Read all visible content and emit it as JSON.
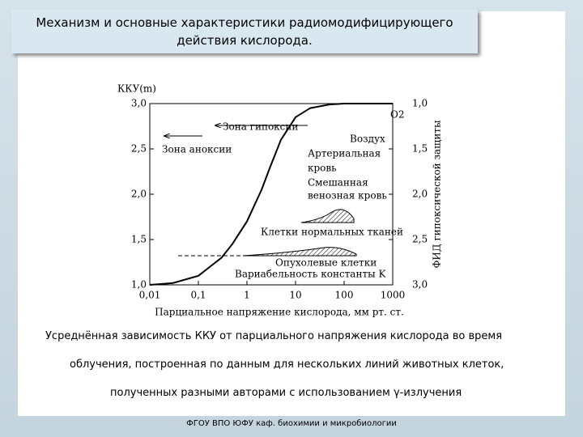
{
  "slide": {
    "title": "Механизм и основные характеристики радиомодифицирующего действия кислорода.",
    "caption": [
      "Усреднённая зависимость ККУ от парциального напряжения кислорода во время",
      "облучения, построенная по данным для нескольких линий животных клеток,",
      "полученных разными авторами с использованием γ-излучения"
    ],
    "footer": "ФГОУ ВПО ЮФУ  каф. биохимии и микробиологии"
  },
  "chart_data": {
    "type": "line",
    "y_label": "ККУ(m)",
    "y2_label": "ФИД гипоксической защиты",
    "x_label": "Парциальное напряжение кислорода, мм рт. ст.",
    "log_x": true,
    "x": [
      0.01,
      0.03,
      0.1,
      0.3,
      0.5,
      1,
      2,
      3,
      5,
      10,
      20,
      50,
      100,
      1000
    ],
    "series": [
      {
        "name": "ККУ",
        "color": "#000000",
        "values": [
          1.0,
          1.02,
          1.1,
          1.3,
          1.45,
          1.7,
          2.05,
          2.3,
          2.6,
          2.85,
          2.95,
          2.99,
          3.0,
          3.0
        ]
      }
    ],
    "xlim": [
      0.01,
      1000
    ],
    "xticks": [
      {
        "value": 0.01,
        "label": "0,01"
      },
      {
        "value": 0.1,
        "label": "0,1"
      },
      1,
      10,
      100,
      1000
    ],
    "ylim": [
      1.0,
      3.0
    ],
    "yticks": [
      {
        "value": 1.0,
        "label": "1,0"
      },
      {
        "value": 1.5,
        "label": "1,5"
      },
      {
        "value": 2.0,
        "label": "2,0"
      },
      {
        "value": 2.5,
        "label": "2,5"
      },
      {
        "value": 3.0,
        "label": "3,0"
      }
    ],
    "y2lim": [
      3.0,
      1.0
    ],
    "y2ticks": [
      {
        "value": 1.0,
        "label": "1,0"
      },
      {
        "value": 1.5,
        "label": "1,5"
      },
      {
        "value": 2.0,
        "label": "2,0"
      },
      {
        "value": 2.5,
        "label": "2,5"
      },
      {
        "value": 3.0,
        "label": "3,0"
      }
    ],
    "annotations": [
      "Зона гипоксии",
      "Зона аноксии",
      "Воздух",
      "O2",
      "Артериальная",
      "кровь",
      "Смешанная",
      "венозная кровь",
      "Клетки нормальных тканей",
      "Опухолевые клетки",
      "Вариабельность константы K"
    ]
  }
}
